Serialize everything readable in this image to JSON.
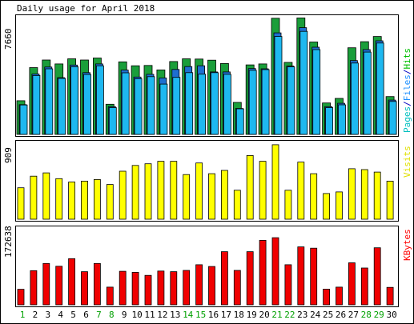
{
  "chart_data": [
    {
      "type": "bar",
      "title": "Daily usage for April 2018",
      "ylabel_max": "7660",
      "legend": [
        {
          "text": "Pages",
          "color": "#00C0C0"
        },
        {
          "text": "/",
          "color": "#0000C0"
        },
        {
          "text": "Files",
          "color": "#1E90FF"
        },
        {
          "text": "/",
          "color": "#0000C0"
        },
        {
          "text": "Hits",
          "color": "#00C000"
        }
      ],
      "ylim": [
        0,
        7660
      ],
      "categories": [
        "1",
        "2",
        "3",
        "4",
        "5",
        "6",
        "7",
        "8",
        "9",
        "10",
        "11",
        "12",
        "13",
        "14",
        "15",
        "16",
        "17",
        "18",
        "19",
        "20",
        "21",
        "22",
        "23",
        "24",
        "25",
        "26",
        "27",
        "28",
        "29",
        "30"
      ],
      "series": [
        {
          "name": "Hits",
          "color": "#1A9E3A",
          "values": [
            2210,
            4380,
            4880,
            4620,
            4960,
            4880,
            5010,
            1980,
            4760,
            4500,
            4520,
            4230,
            4780,
            4960,
            4940,
            4870,
            4650,
            2100,
            4560,
            4620,
            7620,
            4720,
            7640,
            6060,
            2060,
            2360,
            5680,
            6080,
            6420,
            2480
          ]
        },
        {
          "name": "Files",
          "color": "#1E6FD0",
          "values": [
            1950,
            3960,
            4420,
            3720,
            4550,
            4050,
            4620,
            1820,
            4220,
            3760,
            3940,
            3700,
            4260,
            4450,
            4500,
            4100,
            4100,
            1700,
            4320,
            4300,
            6660,
            4480,
            7000,
            5720,
            1820,
            2040,
            4840,
            5560,
            6140,
            2250
          ]
        },
        {
          "name": "Pages",
          "color": "#1EB8F0",
          "values": [
            1930,
            3860,
            4300,
            3670,
            4440,
            3930,
            4500,
            1760,
            4040,
            3650,
            3790,
            3300,
            3740,
            4050,
            3950,
            4050,
            3940,
            1680,
            4200,
            4250,
            6420,
            4430,
            6760,
            5560,
            1760,
            1940,
            4680,
            5400,
            5990,
            2160
          ]
        }
      ]
    },
    {
      "type": "bar",
      "ylabel_max": "909",
      "legend": [
        {
          "text": "Visits",
          "color": "#E0E000"
        }
      ],
      "ylim": [
        0,
        909
      ],
      "categories": [
        "1",
        "2",
        "3",
        "4",
        "5",
        "6",
        "7",
        "8",
        "9",
        "10",
        "11",
        "12",
        "13",
        "14",
        "15",
        "16",
        "17",
        "18",
        "19",
        "20",
        "21",
        "22",
        "23",
        "24",
        "25",
        "26",
        "27",
        "28",
        "29",
        "30"
      ],
      "series": [
        {
          "name": "Visits",
          "color": "#FFFF00",
          "values": [
            380,
            520,
            560,
            490,
            450,
            460,
            480,
            420,
            580,
            650,
            670,
            700,
            700,
            540,
            680,
            550,
            590,
            350,
            770,
            700,
            900,
            350,
            690,
            550,
            310,
            330,
            610,
            600,
            570,
            460
          ]
        }
      ]
    },
    {
      "type": "bar",
      "ylabel_max": "172638",
      "legend": [
        {
          "text": "KBytes",
          "color": "#FF0000"
        }
      ],
      "ylim": [
        0,
        172638
      ],
      "categories": [
        "1",
        "2",
        "3",
        "4",
        "5",
        "6",
        "7",
        "8",
        "9",
        "10",
        "11",
        "12",
        "13",
        "14",
        "15",
        "16",
        "17",
        "18",
        "19",
        "20",
        "21",
        "22",
        "23",
        "24",
        "25",
        "26",
        "27",
        "28",
        "29",
        "30"
      ],
      "series": [
        {
          "name": "KBytes",
          "color": "#F00000",
          "values": [
            35600,
            78500,
            95000,
            88500,
            106000,
            76000,
            95000,
            40500,
            77000,
            74500,
            67500,
            77500,
            76000,
            79000,
            92000,
            88000,
            122000,
            79000,
            122000,
            148000,
            154000,
            92000,
            133000,
            130000,
            36000,
            40500,
            96500,
            84500,
            131000,
            40000
          ]
        }
      ]
    }
  ],
  "x_labels": [
    {
      "t": "1",
      "c": "#00A000"
    },
    {
      "t": "2",
      "c": "#000000"
    },
    {
      "t": "3",
      "c": "#000000"
    },
    {
      "t": "4",
      "c": "#000000"
    },
    {
      "t": "5",
      "c": "#000000"
    },
    {
      "t": "6",
      "c": "#000000"
    },
    {
      "t": "7",
      "c": "#00A000"
    },
    {
      "t": "8",
      "c": "#00A000"
    },
    {
      "t": "9",
      "c": "#000000"
    },
    {
      "t": "10",
      "c": "#000000"
    },
    {
      "t": "11",
      "c": "#000000"
    },
    {
      "t": "12",
      "c": "#000000"
    },
    {
      "t": "13",
      "c": "#000000"
    },
    {
      "t": "14",
      "c": "#00A000"
    },
    {
      "t": "15",
      "c": "#00A000"
    },
    {
      "t": "16",
      "c": "#000000"
    },
    {
      "t": "17",
      "c": "#000000"
    },
    {
      "t": "18",
      "c": "#000000"
    },
    {
      "t": "19",
      "c": "#000000"
    },
    {
      "t": "20",
      "c": "#000000"
    },
    {
      "t": "21",
      "c": "#00A000"
    },
    {
      "t": "22",
      "c": "#00A000"
    },
    {
      "t": "23",
      "c": "#000000"
    },
    {
      "t": "24",
      "c": "#000000"
    },
    {
      "t": "25",
      "c": "#000000"
    },
    {
      "t": "26",
      "c": "#000000"
    },
    {
      "t": "27",
      "c": "#000000"
    },
    {
      "t": "28",
      "c": "#00A000"
    },
    {
      "t": "29",
      "c": "#00A000"
    },
    {
      "t": "30",
      "c": "#000000"
    }
  ]
}
